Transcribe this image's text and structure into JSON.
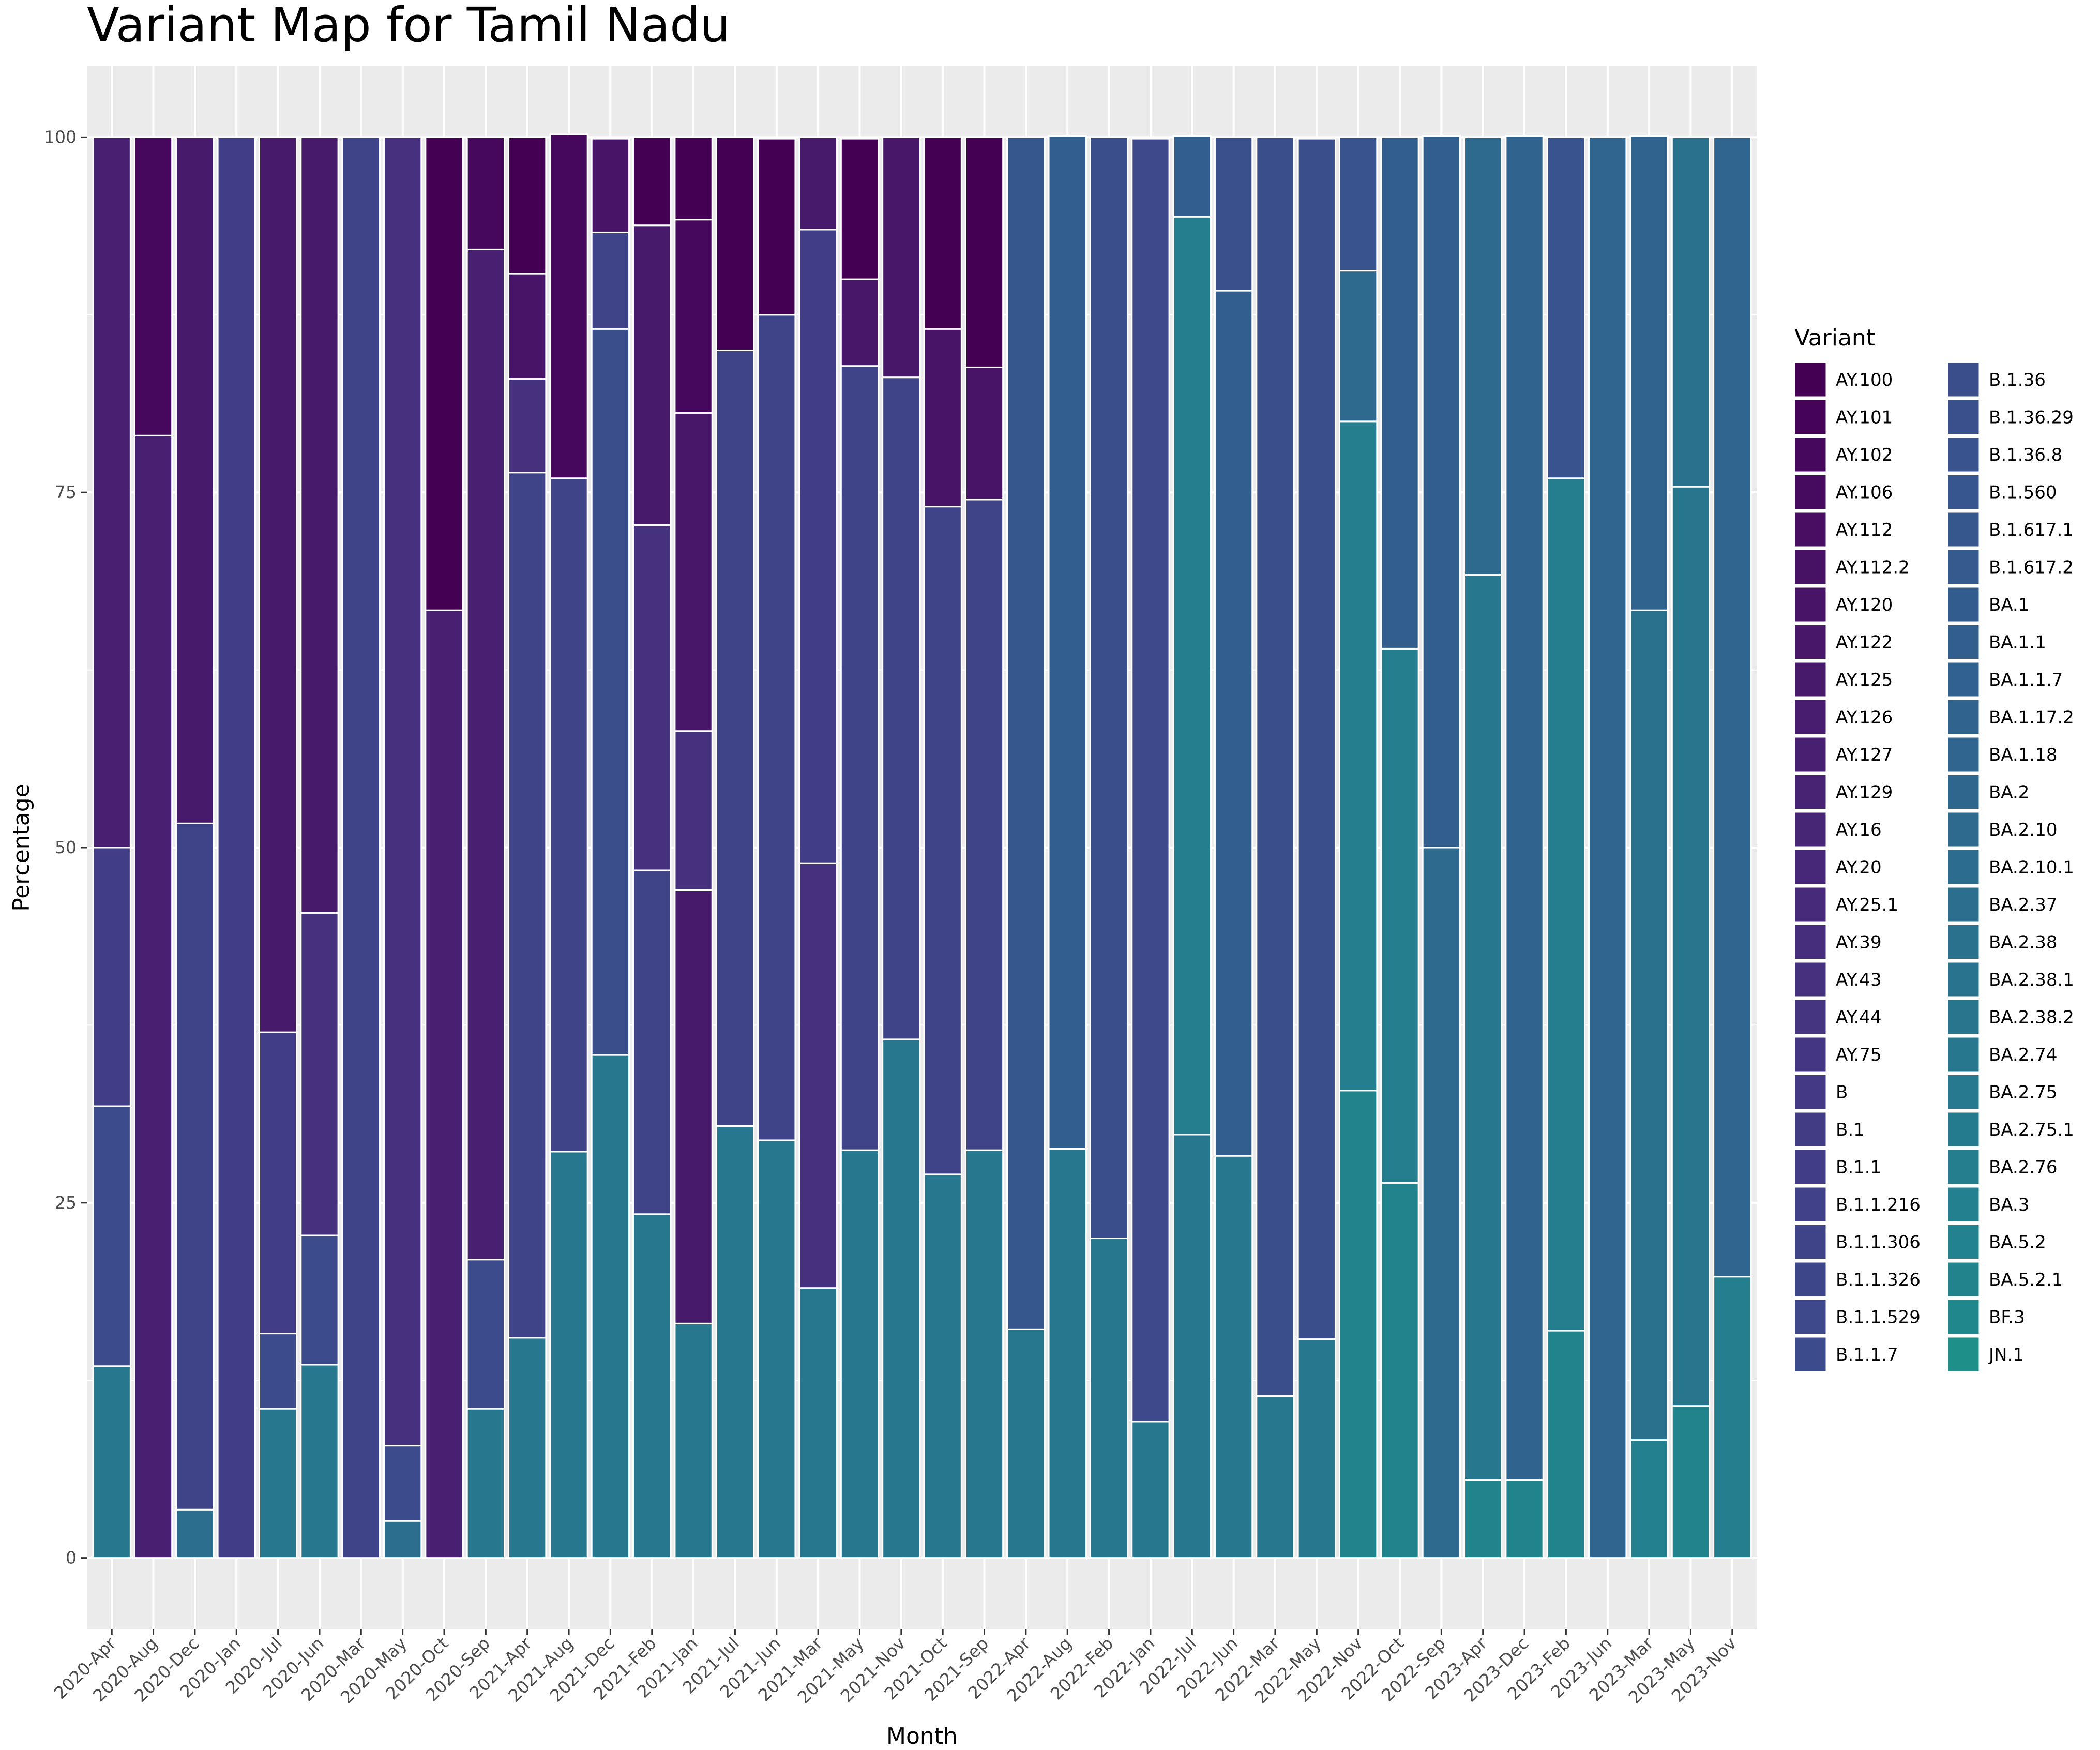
{
  "chart_data": {
    "type": "bar",
    "stacked": true,
    "title": "Variant Map for Tamil Nadu",
    "xlabel": "Month",
    "ylabel": "Percentage",
    "ylim": [
      -5,
      105
    ],
    "yticks": [
      0,
      25,
      50,
      75,
      100
    ],
    "grid": true,
    "legend": {
      "title": "Variant",
      "position": "right",
      "columns": 2,
      "items": [
        {
          "name": "AY.100",
          "color": "#440154"
        },
        {
          "name": "AY.101",
          "color": "#450457"
        },
        {
          "name": "AY.102",
          "color": "#46085c"
        },
        {
          "name": "AY.106",
          "color": "#460b5e"
        },
        {
          "name": "AY.112",
          "color": "#470e61"
        },
        {
          "name": "AY.112.2",
          "color": "#471164"
        },
        {
          "name": "AY.120",
          "color": "#481467"
        },
        {
          "name": "AY.122",
          "color": "#481769"
        },
        {
          "name": "AY.125",
          "color": "#481a6c"
        },
        {
          "name": "AY.126",
          "color": "#481d6f"
        },
        {
          "name": "AY.127",
          "color": "#482071"
        },
        {
          "name": "AY.129",
          "color": "#482374"
        },
        {
          "name": "AY.16",
          "color": "#472676"
        },
        {
          "name": "AY.20",
          "color": "#472878"
        },
        {
          "name": "AY.25.1",
          "color": "#472b7a"
        },
        {
          "name": "AY.39",
          "color": "#462e7c"
        },
        {
          "name": "AY.43",
          "color": "#46317e"
        },
        {
          "name": "AY.44",
          "color": "#453480"
        },
        {
          "name": "AY.75",
          "color": "#443682"
        },
        {
          "name": "B",
          "color": "#433984"
        },
        {
          "name": "B.1",
          "color": "#423c85"
        },
        {
          "name": "B.1.1",
          "color": "#413e87"
        },
        {
          "name": "B.1.1.216",
          "color": "#404188"
        },
        {
          "name": "B.1.1.306",
          "color": "#3f4489"
        },
        {
          "name": "B.1.1.326",
          "color": "#3e468a"
        },
        {
          "name": "B.1.1.529",
          "color": "#3d498b"
        },
        {
          "name": "B.1.1.7",
          "color": "#3c4b8c"
        },
        {
          "name": "B.1.36",
          "color": "#3b4e8c"
        },
        {
          "name": "B.1.36.29",
          "color": "#39508d"
        },
        {
          "name": "B.1.36.8",
          "color": "#38538d"
        },
        {
          "name": "B.1.560",
          "color": "#37558e"
        },
        {
          "name": "B.1.617.1",
          "color": "#35578e"
        },
        {
          "name": "B.1.617.2",
          "color": "#345a8e"
        },
        {
          "name": "BA.1",
          "color": "#335c8e"
        },
        {
          "name": "BA.1.1",
          "color": "#325e8e"
        },
        {
          "name": "BA.1.1.7",
          "color": "#31618e"
        },
        {
          "name": "BA.1.17.2",
          "color": "#30638e"
        },
        {
          "name": "BA.1.18",
          "color": "#2f658e"
        },
        {
          "name": "BA.2",
          "color": "#2e678e"
        },
        {
          "name": "BA.2.10",
          "color": "#2d6a8e"
        },
        {
          "name": "BA.2.10.1",
          "color": "#2c6c8e"
        },
        {
          "name": "BA.2.37",
          "color": "#2b6e8e"
        },
        {
          "name": "BA.2.38",
          "color": "#2a718e"
        },
        {
          "name": "BA.2.38.1",
          "color": "#29738e"
        },
        {
          "name": "BA.2.38.2",
          "color": "#28758e"
        },
        {
          "name": "BA.2.74",
          "color": "#27778e"
        },
        {
          "name": "BA.2.75",
          "color": "#26798e"
        },
        {
          "name": "BA.2.75.1",
          "color": "#257b8e"
        },
        {
          "name": "BA.2.76",
          "color": "#247e8e"
        },
        {
          "name": "BA.3",
          "color": "#23808e"
        },
        {
          "name": "BA.5.2",
          "color": "#22828e"
        },
        {
          "name": "BA.5.2.1",
          "color": "#21848d"
        },
        {
          "name": "BF.3",
          "color": "#20878d"
        },
        {
          "name": "JN.1",
          "color": "#1f8f8a"
        }
      ]
    },
    "categories": [
      "2020-Apr",
      "2020-Aug",
      "2020-Dec",
      "2020-Jan",
      "2020-Jul",
      "2020-Jun",
      "2020-Mar",
      "2020-May",
      "2020-Oct",
      "2020-Sep",
      "2021-Apr",
      "2021-Aug",
      "2021-Dec",
      "2021-Feb",
      "2021-Jan",
      "2021-Jul",
      "2021-Jun",
      "2021-Mar",
      "2021-May",
      "2021-Nov",
      "2021-Oct",
      "2021-Sep",
      "2022-Apr",
      "2022-Aug",
      "2022-Feb",
      "2022-Jan",
      "2022-Jul",
      "2022-Jun",
      "2022-Mar",
      "2022-May",
      "2022-Nov",
      "2022-Oct",
      "2022-Sep",
      "2023-Apr",
      "2023-Dec",
      "2023-Feb",
      "2023-Jun",
      "2023-Mar",
      "2023-May",
      "2023-Nov"
    ],
    "stacks": [
      [
        {
          "variant": "BA.2.74",
          "value": 13.5
        },
        {
          "variant": "B.1.1.7",
          "value": 18.3
        },
        {
          "variant": "B.1.1",
          "value": 18.2
        },
        {
          "variant": "AY.127",
          "value": 50
        }
      ],
      [
        {
          "variant": "AY.127",
          "value": 79
        },
        {
          "variant": "AY.102",
          "value": 21
        }
      ],
      [
        {
          "variant": "BA.2.37",
          "value": 3.4
        },
        {
          "variant": "B.1.1.306",
          "value": 48.3
        },
        {
          "variant": "AY.125",
          "value": 48.3
        }
      ],
      [
        {
          "variant": "B.1.1",
          "value": 100
        }
      ],
      [
        {
          "variant": "BA.2.74",
          "value": 10.5
        },
        {
          "variant": "B.1.1.7",
          "value": 5.3
        },
        {
          "variant": "B.1.1",
          "value": 21.2
        },
        {
          "variant": "AY.125",
          "value": 63
        }
      ],
      [
        {
          "variant": "BA.2.74",
          "value": 13.6
        },
        {
          "variant": "B.1.1.7",
          "value": 9.1
        },
        {
          "variant": "AY.43",
          "value": 22.7
        },
        {
          "variant": "AY.125",
          "value": 54.6
        }
      ],
      [
        {
          "variant": "B.1.1.306",
          "value": 100
        }
      ],
      [
        {
          "variant": "BA.2.37",
          "value": 2.6
        },
        {
          "variant": "B.1.1.7",
          "value": 5.3
        },
        {
          "variant": "AY.43",
          "value": 92.1
        }
      ],
      [
        {
          "variant": "AY.127",
          "value": 66.7
        },
        {
          "variant": "AY.100",
          "value": 33.3
        }
      ],
      [
        {
          "variant": "BA.2.74",
          "value": 10.5
        },
        {
          "variant": "B.1.1.7",
          "value": 10.5
        },
        {
          "variant": "AY.127",
          "value": 71.1
        },
        {
          "variant": "AY.102",
          "value": 7.9
        }
      ],
      [
        {
          "variant": "BA.2.74",
          "value": 15.5
        },
        {
          "variant": "B.1.1.306",
          "value": 60.9
        },
        {
          "variant": "AY.43",
          "value": 6.6
        },
        {
          "variant": "AY.120",
          "value": 7.4
        },
        {
          "variant": "AY.100",
          "value": 9.6
        }
      ],
      [
        {
          "variant": "BA.2.74",
          "value": 28.6
        },
        {
          "variant": "B.1.1.306",
          "value": 47.4
        },
        {
          "variant": "AY.102",
          "value": 24.2
        }
      ],
      [
        {
          "variant": "BA.2.74",
          "value": 35.4
        },
        {
          "variant": "B.1.36",
          "value": 51.1
        },
        {
          "variant": "B.1.1.306",
          "value": 6.8
        },
        {
          "variant": "AY.120",
          "value": 6.6
        }
      ],
      [
        {
          "variant": "BA.2.74",
          "value": 24.2
        },
        {
          "variant": "B.1.1.306",
          "value": 24.2
        },
        {
          "variant": "AY.43",
          "value": 24.3
        },
        {
          "variant": "AY.125",
          "value": 21.1
        },
        {
          "variant": "AY.100",
          "value": 6.2
        }
      ],
      [
        {
          "variant": "BA.2.74",
          "value": 16.5
        },
        {
          "variant": "AY.125",
          "value": 30.5
        },
        {
          "variant": "AY.43",
          "value": 11.2
        },
        {
          "variant": "AY.122",
          "value": 22.4
        },
        {
          "variant": "AY.102",
          "value": 13.6
        },
        {
          "variant": "AY.100",
          "value": 5.8
        }
      ],
      [
        {
          "variant": "BA.2.74",
          "value": 30.4
        },
        {
          "variant": "B.1.1.306",
          "value": 54.6
        },
        {
          "variant": "AY.100",
          "value": 15
        }
      ],
      [
        {
          "variant": "BA.2.74",
          "value": 29.4
        },
        {
          "variant": "B.1.1.306",
          "value": 58.1
        },
        {
          "variant": "AY.100",
          "value": 12.4
        }
      ],
      [
        {
          "variant": "BA.2.74",
          "value": 19
        },
        {
          "variant": "AY.43",
          "value": 29.9
        },
        {
          "variant": "B.1.1",
          "value": 44.6
        },
        {
          "variant": "AY.125",
          "value": 6.5
        }
      ],
      [
        {
          "variant": "BA.2.74",
          "value": 28.7
        },
        {
          "variant": "B.1.1.306",
          "value": 55.2
        },
        {
          "variant": "AY.122",
          "value": 6.1
        },
        {
          "variant": "AY.100",
          "value": 9.9
        }
      ],
      [
        {
          "variant": "BA.2.74",
          "value": 36.5
        },
        {
          "variant": "B.1.1.306",
          "value": 46.6
        },
        {
          "variant": "AY.122",
          "value": 16.9
        }
      ],
      [
        {
          "variant": "BA.2.74",
          "value": 27
        },
        {
          "variant": "B.1.1.306",
          "value": 47
        },
        {
          "variant": "AY.120",
          "value": 12.5
        },
        {
          "variant": "AY.100",
          "value": 13.5
        }
      ],
      [
        {
          "variant": "BA.2.74",
          "value": 28.7
        },
        {
          "variant": "B.1.1.306",
          "value": 45.8
        },
        {
          "variant": "AY.120",
          "value": 9.3
        },
        {
          "variant": "AY.100",
          "value": 16.2
        }
      ],
      [
        {
          "variant": "BA.2.74",
          "value": 16.1
        },
        {
          "variant": "B.1.617.1",
          "value": 83.9
        }
      ],
      [
        {
          "variant": "BA.2.74",
          "value": 28.8
        },
        {
          "variant": "BA.1.1",
          "value": 71.3
        }
      ],
      [
        {
          "variant": "BA.2.74",
          "value": 22.5
        },
        {
          "variant": "B.1.36",
          "value": 77.5
        }
      ],
      [
        {
          "variant": "BA.2.74",
          "value": 9.6
        },
        {
          "variant": "B.1.1.529",
          "value": 90.3
        }
      ],
      [
        {
          "variant": "BA.2.74",
          "value": 29.8
        },
        {
          "variant": "BA.2.76",
          "value": 64.6
        },
        {
          "variant": "BA.1.1",
          "value": 5.7
        }
      ],
      [
        {
          "variant": "BA.2.74",
          "value": 28.3
        },
        {
          "variant": "BA.1.1",
          "value": 60.9
        },
        {
          "variant": "B.1.36.29",
          "value": 10.8
        }
      ],
      [
        {
          "variant": "BA.2.74",
          "value": 11.4
        },
        {
          "variant": "B.1.36",
          "value": 88.6
        }
      ],
      [
        {
          "variant": "BA.2.74",
          "value": 15.4
        },
        {
          "variant": "B.1.36",
          "value": 84.5
        }
      ],
      [
        {
          "variant": "BA.5.2.1",
          "value": 32.9
        },
        {
          "variant": "BA.2.76",
          "value": 47.1
        },
        {
          "variant": "BA.2.10",
          "value": 10.6
        },
        {
          "variant": "B.1.36.8",
          "value": 9.4
        }
      ],
      [
        {
          "variant": "BA.5.2.1",
          "value": 26.4
        },
        {
          "variant": "BA.2.76",
          "value": 37.6
        },
        {
          "variant": "BA.1.1",
          "value": 36
        }
      ],
      [
        {
          "variant": "BA.2.10",
          "value": 50
        },
        {
          "variant": "BA.1.1",
          "value": 50.1
        }
      ],
      [
        {
          "variant": "BA.5.2.1",
          "value": 5.5
        },
        {
          "variant": "BA.2.74",
          "value": 63.7
        },
        {
          "variant": "BA.2.10",
          "value": 30.8
        }
      ],
      [
        {
          "variant": "BA.5.2.1",
          "value": 5.5
        },
        {
          "variant": "BA.1.17.2",
          "value": 94.6
        }
      ],
      [
        {
          "variant": "BA.5.2.1",
          "value": 16
        },
        {
          "variant": "BA.2.76",
          "value": 60
        },
        {
          "variant": "B.1.36.8",
          "value": 24
        }
      ],
      [
        {
          "variant": "BA.1.18",
          "value": 100
        }
      ],
      [
        {
          "variant": "BA.3",
          "value": 8.3
        },
        {
          "variant": "BA.2.38",
          "value": 58.4
        },
        {
          "variant": "BA.1.17.2",
          "value": 33.4
        }
      ],
      [
        {
          "variant": "BA.5.2.1",
          "value": 10.7
        },
        {
          "variant": "BA.2.38.2",
          "value": 64.7
        },
        {
          "variant": "BA.2.38",
          "value": 24.6
        }
      ],
      [
        {
          "variant": "BA.2.76",
          "value": 19.8
        },
        {
          "variant": "BA.1.18",
          "value": 80.2
        }
      ]
    ]
  }
}
